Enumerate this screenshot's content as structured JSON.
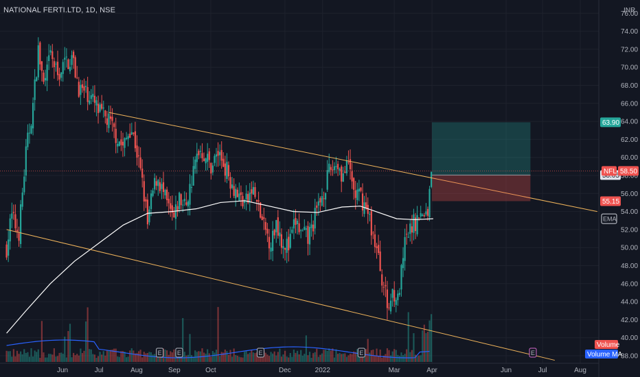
{
  "header": {
    "symbol_title": "NATIONAL FERTI.LTD, 1D, NSE"
  },
  "chart_data": {
    "type": "candlestick",
    "currency": "INR",
    "y_ticks": [
      "38.00",
      "40.00",
      "42.00",
      "44.00",
      "46.00",
      "48.00",
      "50.00",
      "52.00",
      "54.00",
      "56.00",
      "58.00",
      "60.00",
      "62.00",
      "64.00",
      "66.00",
      "68.00",
      "70.00",
      "72.00",
      "74.00",
      "76.00"
    ],
    "x_ticks": [
      {
        "label": "Jun",
        "day": 0
      },
      {
        "label": "Jul",
        "day": 30
      },
      {
        "label": "Aug",
        "day": 61
      },
      {
        "label": "Sep",
        "day": 92
      },
      {
        "label": "Oct",
        "day": 122
      },
      {
        "label": "Dec",
        "day": 183
      },
      {
        "label": "2022",
        "day": 214
      },
      {
        "label": "Mar",
        "day": 273
      },
      {
        "label": "Apr",
        "day": 304
      },
      {
        "label": "Jun",
        "day": 365
      },
      {
        "label": "Jul",
        "day": 395
      },
      {
        "label": "Aug",
        "day": 426
      }
    ],
    "ylim": [
      37.4,
      76.8
    ],
    "price_path": [
      [
        -46,
        50.0
      ],
      [
        -42,
        53.5
      ],
      [
        -36,
        51.5
      ],
      [
        -30,
        60.5
      ],
      [
        -24,
        66.0
      ],
      [
        -20,
        72.0
      ],
      [
        -15,
        67.5
      ],
      [
        -10,
        71.5
      ],
      [
        -4,
        69.0
      ],
      [
        2,
        70.5
      ],
      [
        8,
        71.0
      ],
      [
        14,
        67.5
      ],
      [
        22,
        67.0
      ],
      [
        30,
        65.0
      ],
      [
        38,
        64.0
      ],
      [
        46,
        62.0
      ],
      [
        50,
        61.0
      ],
      [
        56,
        63.5
      ],
      [
        60,
        61.5
      ],
      [
        64,
        58.5
      ],
      [
        68,
        55.0
      ],
      [
        70,
        52.5
      ],
      [
        74,
        56.0
      ],
      [
        78,
        58.0
      ],
      [
        84,
        55.5
      ],
      [
        88,
        54.0
      ],
      [
        92,
        53.0
      ],
      [
        96,
        55.5
      ],
      [
        100,
        54.5
      ],
      [
        104,
        56.0
      ],
      [
        108,
        58.5
      ],
      [
        112,
        61.0
      ],
      [
        116,
        60.5
      ],
      [
        122,
        59.0
      ],
      [
        128,
        60.5
      ],
      [
        134,
        59.0
      ],
      [
        140,
        57.0
      ],
      [
        146,
        55.5
      ],
      [
        152,
        55.0
      ],
      [
        156,
        56.5
      ],
      [
        160,
        55.0
      ],
      [
        166,
        52.0
      ],
      [
        172,
        50.5
      ],
      [
        176,
        53.0
      ],
      [
        180,
        51.0
      ],
      [
        186,
        50.0
      ],
      [
        192,
        53.0
      ],
      [
        196,
        51.5
      ],
      [
        202,
        51.0
      ],
      [
        208,
        53.5
      ],
      [
        214,
        56.0
      ],
      [
        220,
        58.5
      ],
      [
        226,
        59.5
      ],
      [
        230,
        58.0
      ],
      [
        236,
        59.0
      ],
      [
        240,
        56.0
      ],
      [
        246,
        55.5
      ],
      [
        252,
        53.5
      ],
      [
        258,
        50.0
      ],
      [
        264,
        46.0
      ],
      [
        268,
        43.0
      ],
      [
        272,
        45.5
      ],
      [
        276,
        44.0
      ],
      [
        282,
        50.5
      ],
      [
        288,
        52.5
      ],
      [
        294,
        53.5
      ],
      [
        300,
        53.0
      ],
      [
        304,
        58.5
      ]
    ],
    "ema_path": [
      [
        -46,
        40.5
      ],
      [
        -30,
        43.0
      ],
      [
        -10,
        46.0
      ],
      [
        10,
        48.5
      ],
      [
        30,
        50.5
      ],
      [
        50,
        52.5
      ],
      [
        70,
        53.8
      ],
      [
        90,
        54.0
      ],
      [
        110,
        54.3
      ],
      [
        130,
        55.0
      ],
      [
        150,
        55.2
      ],
      [
        170,
        54.6
      ],
      [
        190,
        54.0
      ],
      [
        210,
        53.9
      ],
      [
        230,
        54.5
      ],
      [
        245,
        54.6
      ],
      [
        260,
        53.9
      ],
      [
        275,
        53.2
      ],
      [
        290,
        53.1
      ],
      [
        305,
        53.2
      ]
    ],
    "trend_lines": [
      {
        "from": [
          38,
          65.0
        ],
        "to": [
          440,
          54.0
        ]
      },
      {
        "from": [
          -46,
          52.0
        ],
        "to": [
          405,
          37.5
        ]
      }
    ],
    "position": {
      "start_day": 304,
      "end_day": 385,
      "entry": 58.05,
      "target": 63.9,
      "stop": 55.15
    },
    "price_tags": [
      {
        "label": "63.90",
        "value": 63.9,
        "color": "#26a69a"
      },
      {
        "label": "58.05",
        "value": 58.05,
        "color": "#e0e3eb"
      },
      {
        "label": "55.15",
        "value": 55.15,
        "color": "#ef5350"
      }
    ],
    "symbol_tag": {
      "label": "NFL",
      "price": "58.50",
      "value": 58.5,
      "color": "#ef5350"
    },
    "ema_tag": {
      "label": "EMA",
      "value": 53.2
    },
    "earnings_markers": {
      "label": "E",
      "days": [
        80,
        96,
        163,
        246,
        387
      ]
    },
    "legend": {
      "volume": "Volume",
      "volume_ma": "Volume MA"
    },
    "colors": {
      "up": "#26a69a",
      "down": "#ef5350",
      "ema": "#ffffff",
      "trend": "#f0b45b",
      "background": "#131722",
      "grid": "#1e222d"
    }
  }
}
